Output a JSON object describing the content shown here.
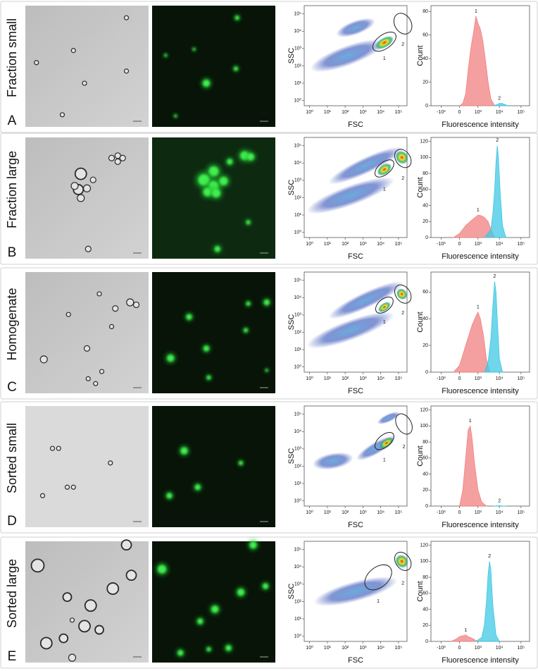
{
  "panels": [
    {
      "letter": "A",
      "label": "Fraction small"
    },
    {
      "letter": "B",
      "label": "Fraction large"
    },
    {
      "letter": "C",
      "label": "Homogenate"
    },
    {
      "letter": "D",
      "label": "Sorted small"
    },
    {
      "letter": "E",
      "label": "Sorted large"
    }
  ],
  "chart_data": [
    {
      "type": "scatter",
      "xlabel": "FSC",
      "ylabel": "SSC",
      "log": true,
      "xlim": [
        0.5,
        300000
      ],
      "ylim": [
        0.5,
        300000
      ],
      "xticks": [
        {
          "value": 1,
          "label": "10⁰"
        },
        {
          "value": 10,
          "label": "10¹"
        },
        {
          "value": 100,
          "label": "10²"
        },
        {
          "value": 1000,
          "label": "10³"
        },
        {
          "value": 10000,
          "label": "10⁴"
        },
        {
          "value": 100000,
          "label": "10⁵"
        }
      ],
      "yticks": [
        {
          "value": 1,
          "label": "10⁰"
        },
        {
          "value": 10,
          "label": "10¹"
        },
        {
          "value": 100,
          "label": "10²"
        },
        {
          "value": 1000,
          "label": "10³"
        },
        {
          "value": 10000,
          "label": "10⁴"
        },
        {
          "value": 100000,
          "label": "10⁵"
        }
      ],
      "gates": [
        "1",
        "2"
      ]
    },
    {
      "type": "area",
      "xlabel": "Fluorescence intensity",
      "ylabel": "Count",
      "xscale": "biexponential",
      "xlim": [
        -3000,
        250000
      ],
      "ylim": [
        0,
        85
      ],
      "xticks": [
        {
          "value": -1000,
          "label": "-10³"
        },
        0,
        {
          "value": 1000,
          "label": "10³"
        },
        {
          "value": 10000,
          "label": "10⁴"
        },
        {
          "value": 100000,
          "label": "10⁵"
        }
      ],
      "yticks": [
        0,
        20,
        40,
        60,
        80
      ],
      "series": [
        {
          "name": "1",
          "color": "#f28080",
          "x": [
            0,
            100,
            200,
            300,
            400,
            500,
            600,
            700,
            800,
            1000,
            1300,
            1700,
            2200,
            3000,
            4000,
            6000
          ],
          "values": [
            0,
            2,
            10,
            30,
            45,
            55,
            62,
            70,
            76,
            70,
            65,
            55,
            40,
            20,
            6,
            0
          ]
        },
        {
          "name": "2",
          "color": "#3fc8e4",
          "x": [
            5000,
            8000,
            10000,
            13000,
            18000,
            25000
          ],
          "values": [
            0,
            1,
            2,
            2,
            1,
            0
          ]
        }
      ]
    },
    {
      "type": "scatter",
      "xlabel": "FSC",
      "ylabel": "SSC",
      "log": true,
      "xlim": [
        0.5,
        300000
      ],
      "ylim": [
        0.5,
        300000
      ],
      "xticks": [
        {
          "value": 1,
          "label": "10⁰"
        },
        {
          "value": 10,
          "label": "10¹"
        },
        {
          "value": 100,
          "label": "10²"
        },
        {
          "value": 1000,
          "label": "10³"
        },
        {
          "value": 10000,
          "label": "10⁴"
        },
        {
          "value": 100000,
          "label": "10⁵"
        }
      ],
      "yticks": [
        {
          "value": 1,
          "label": "10⁰"
        },
        {
          "value": 10,
          "label": "10¹"
        },
        {
          "value": 100,
          "label": "10²"
        },
        {
          "value": 1000,
          "label": "10³"
        },
        {
          "value": 10000,
          "label": "10⁴"
        },
        {
          "value": 100000,
          "label": "10⁵"
        }
      ],
      "gates": [
        "1",
        "2"
      ]
    },
    {
      "type": "area",
      "xlabel": "Fluorescence intensity",
      "ylabel": "Count",
      "xscale": "biexponential",
      "xlim": [
        -3000,
        250000
      ],
      "ylim": [
        0,
        125
      ],
      "xticks": [
        {
          "value": -1000,
          "label": "-10³"
        },
        0,
        {
          "value": 1000,
          "label": "10³"
        },
        {
          "value": 10000,
          "label": "10⁴"
        },
        {
          "value": 100000,
          "label": "10⁵"
        }
      ],
      "yticks": [
        0,
        20,
        40,
        60,
        80,
        100,
        120
      ],
      "series": [
        {
          "name": "1",
          "color": "#f28080",
          "x": [
            -200,
            0,
            200,
            500,
            800,
            1000,
            1500,
            2000,
            3000,
            4000,
            6000
          ],
          "values": [
            0,
            5,
            15,
            22,
            26,
            28,
            27,
            25,
            20,
            10,
            0
          ]
        },
        {
          "name": "2",
          "color": "#3fc8e4",
          "x": [
            2000,
            4000,
            5000,
            6000,
            7000,
            8000,
            9000,
            11000,
            14000,
            20000
          ],
          "values": [
            0,
            10,
            30,
            60,
            95,
            115,
            100,
            55,
            15,
            0
          ]
        }
      ]
    },
    {
      "type": "scatter",
      "xlabel": "FSC",
      "ylabel": "SSC",
      "log": true,
      "xlim": [
        0.5,
        300000
      ],
      "ylim": [
        0.5,
        300000
      ],
      "xticks": [
        {
          "value": 1,
          "label": "10⁰"
        },
        {
          "value": 10,
          "label": "10¹"
        },
        {
          "value": 100,
          "label": "10²"
        },
        {
          "value": 1000,
          "label": "10³"
        },
        {
          "value": 10000,
          "label": "10⁴"
        },
        {
          "value": 100000,
          "label": "10⁵"
        }
      ],
      "yticks": [
        {
          "value": 1,
          "label": "10⁰"
        },
        {
          "value": 10,
          "label": "10¹"
        },
        {
          "value": 100,
          "label": "10²"
        },
        {
          "value": 1000,
          "label": "10³"
        },
        {
          "value": 10000,
          "label": "10⁴"
        },
        {
          "value": 100000,
          "label": "10⁵"
        }
      ],
      "gates": [
        "1",
        "2"
      ]
    },
    {
      "type": "area",
      "xlabel": "Fluorescence intensity",
      "ylabel": "Count",
      "xscale": "biexponential",
      "xlim": [
        -3000,
        250000
      ],
      "ylim": [
        0,
        75
      ],
      "xticks": [
        {
          "value": -1000,
          "label": "-10³"
        },
        0,
        {
          "value": 1000,
          "label": "10³"
        },
        {
          "value": 10000,
          "label": "10⁴"
        },
        {
          "value": 100000,
          "label": "10⁵"
        }
      ],
      "yticks": [
        0,
        20,
        40,
        60
      ],
      "series": [
        {
          "name": "1",
          "color": "#f28080",
          "x": [
            -200,
            0,
            200,
            500,
            800,
            1000,
            1300,
            1800,
            2500,
            3500
          ],
          "values": [
            0,
            5,
            20,
            35,
            42,
            45,
            40,
            28,
            10,
            0
          ]
        },
        {
          "name": "2",
          "color": "#3fc8e4",
          "x": [
            2000,
            3000,
            4000,
            5000,
            6000,
            7000,
            8000,
            10000,
            14000
          ],
          "values": [
            0,
            8,
            25,
            50,
            68,
            60,
            40,
            10,
            0
          ]
        }
      ]
    },
    {
      "type": "scatter",
      "xlabel": "FSC",
      "ylabel": "SSC",
      "log": true,
      "xlim": [
        0.5,
        300000
      ],
      "ylim": [
        0.5,
        300000
      ],
      "xticks": [
        {
          "value": 1,
          "label": "10⁰"
        },
        {
          "value": 10,
          "label": "10¹"
        },
        {
          "value": 100,
          "label": "10²"
        },
        {
          "value": 1000,
          "label": "10³"
        },
        {
          "value": 10000,
          "label": "10⁴"
        },
        {
          "value": 100000,
          "label": "10⁵"
        }
      ],
      "yticks": [
        {
          "value": 1,
          "label": "10⁰"
        },
        {
          "value": 10,
          "label": "10¹"
        },
        {
          "value": 100,
          "label": "10²"
        },
        {
          "value": 1000,
          "label": "10³"
        },
        {
          "value": 10000,
          "label": "10⁴"
        },
        {
          "value": 100000,
          "label": "10⁵"
        }
      ],
      "gates": [
        "1",
        "2"
      ]
    },
    {
      "type": "area",
      "xlabel": "Fluorescence intensity",
      "ylabel": "Count",
      "xscale": "biexponential",
      "xlim": [
        -3000,
        250000
      ],
      "ylim": [
        0,
        125
      ],
      "xticks": [
        {
          "value": -1000,
          "label": "-10³"
        },
        0,
        {
          "value": 1000,
          "label": "10³"
        },
        {
          "value": 10000,
          "label": "10⁴"
        },
        {
          "value": 100000,
          "label": "10⁵"
        }
      ],
      "yticks": [
        0,
        20,
        40,
        60,
        80,
        100,
        120
      ],
      "series": [
        {
          "name": "1",
          "color": "#f28080",
          "x": [
            0,
            100,
            200,
            300,
            400,
            500,
            700,
            1000,
            1500,
            2500
          ],
          "values": [
            0,
            20,
            60,
            95,
            100,
            85,
            50,
            20,
            5,
            0
          ]
        },
        {
          "name": "2",
          "color": "#3fc8e4",
          "x": [
            5000,
            10000,
            20000
          ],
          "values": [
            0,
            0.5,
            0
          ]
        }
      ]
    },
    {
      "type": "scatter",
      "xlabel": "FSC",
      "ylabel": "SSC",
      "log": true,
      "xlim": [
        0.5,
        300000
      ],
      "ylim": [
        0.5,
        300000
      ],
      "xticks": [
        {
          "value": 1,
          "label": "10⁰"
        },
        {
          "value": 10,
          "label": "10¹"
        },
        {
          "value": 100,
          "label": "10²"
        },
        {
          "value": 1000,
          "label": "10³"
        },
        {
          "value": 10000,
          "label": "10⁴"
        },
        {
          "value": 100000,
          "label": "10⁵"
        }
      ],
      "yticks": [
        {
          "value": 1,
          "label": "10⁰"
        },
        {
          "value": 10,
          "label": "10¹"
        },
        {
          "value": 100,
          "label": "10²"
        },
        {
          "value": 1000,
          "label": "10³"
        },
        {
          "value": 10000,
          "label": "10⁴"
        },
        {
          "value": 100000,
          "label": "10⁵"
        }
      ],
      "gates": [
        "1",
        "2"
      ]
    },
    {
      "type": "area",
      "xlabel": "Fluorescence intensity",
      "ylabel": "Count",
      "xscale": "biexponential",
      "xlim": [
        -3000,
        250000
      ],
      "ylim": [
        0,
        125
      ],
      "xticks": [
        {
          "value": -1000,
          "label": "-10³"
        },
        0,
        {
          "value": 1000,
          "label": "10³"
        },
        {
          "value": 10000,
          "label": "10⁴"
        },
        {
          "value": 100000,
          "label": "10⁵"
        }
      ],
      "yticks": [
        0,
        20,
        40,
        60,
        80,
        100,
        120
      ],
      "series": [
        {
          "name": "1",
          "color": "#f28080",
          "x": [
            -300,
            -100,
            0,
            100,
            200,
            300,
            500,
            800,
            1200
          ],
          "values": [
            0,
            3,
            6,
            7,
            8,
            6,
            4,
            1,
            0
          ]
        },
        {
          "name": "2",
          "color": "#3fc8e4",
          "x": [
            800,
            1500,
            2000,
            2500,
            3000,
            3500,
            4000,
            5000,
            7000,
            10000
          ],
          "values": [
            0,
            5,
            20,
            50,
            85,
            100,
            90,
            45,
            8,
            0
          ]
        }
      ]
    }
  ]
}
